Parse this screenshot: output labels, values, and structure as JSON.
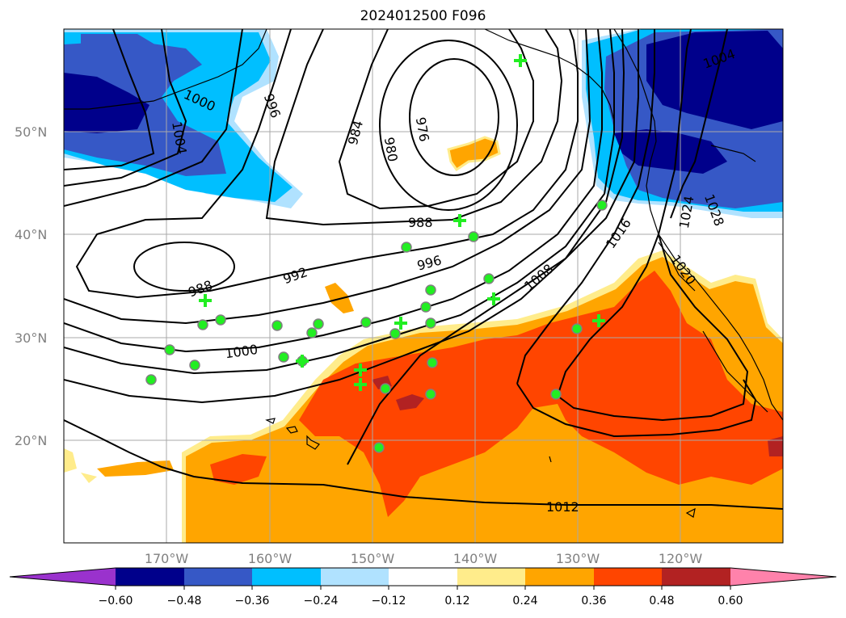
{
  "title": "2024012500 F096",
  "map": {
    "lat_labels": [
      "50°N",
      "40°N",
      "30°N",
      "20°N"
    ],
    "lon_labels": [
      "170°W",
      "160°W",
      "150°W",
      "140°W",
      "130°W",
      "120°W"
    ],
    "contour_labels": [
      "1000",
      "1004",
      "996",
      "984",
      "980",
      "976",
      "988",
      "992",
      "996",
      "988",
      "1000",
      "1008",
      "1016",
      "1024",
      "1028",
      "1020",
      "1012",
      "1004"
    ],
    "contour_color": "#000000",
    "marker_color": "#22ee22",
    "markers": {
      "circles": 30,
      "plus_marks": 8
    }
  },
  "colorbar": {
    "tick_labels": [
      "−0.60",
      "−0.48",
      "−0.36",
      "−0.24",
      "−0.12",
      "0.12",
      "0.24",
      "0.36",
      "0.48",
      "0.60"
    ],
    "colors": [
      "#9a32cd",
      "#00008b",
      "#3658c6",
      "#00bfff",
      "#b0e2ff",
      "#ffffff",
      "#ffec8b",
      "#ffa500",
      "#ff4500",
      "#b22222",
      "#ff82ab"
    ]
  }
}
